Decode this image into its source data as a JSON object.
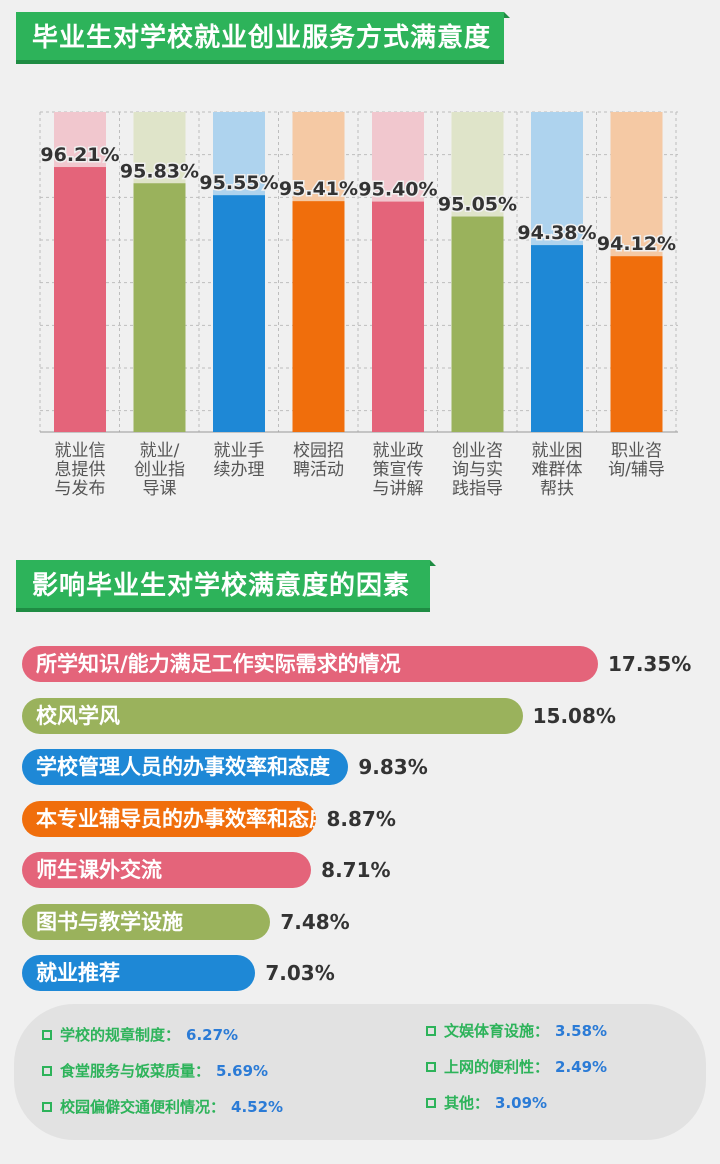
{
  "section1": {
    "title": "毕业生对学校就业创业服务方式满意度"
  },
  "section2": {
    "title": "影响毕业生对学校满意度的因素"
  },
  "colors": {
    "red": "#e4647a",
    "olive": "#9ab25c",
    "blue": "#1e88d6",
    "orange": "#f06e0c",
    "red_light": "#f1c7ce",
    "olive_light": "#dfe4c9",
    "blue_light": "#aed3ee",
    "orange_light": "#f5c9a4",
    "green": "#2db35a"
  },
  "chart_data": [
    {
      "type": "bar",
      "title": "毕业生对学校就业创业服务方式满意度",
      "categories": [
        "就业信息提供与发布",
        "就业/创业指导课",
        "就业手续办理",
        "校园招聘活动",
        "就业政策宣传与讲解",
        "创业咨询与实践指导",
        "就业困难群体帮扶",
        "职业咨询/辅导"
      ],
      "category_lines": [
        [
          "就业信",
          "息提供",
          "与发布"
        ],
        [
          "就业/",
          "创业指",
          "导课"
        ],
        [
          "就业手",
          "续办理"
        ],
        [
          "校园招",
          "聘活动"
        ],
        [
          "就业政",
          "策宣传",
          "与讲解"
        ],
        [
          "创业咨",
          "询与实",
          "践指导"
        ],
        [
          "就业困",
          "难群体",
          "帮扶"
        ],
        [
          "职业咨",
          "询/辅导"
        ]
      ],
      "values": [
        96.21,
        95.83,
        95.55,
        95.41,
        95.4,
        95.05,
        94.38,
        94.12
      ],
      "value_labels": [
        "96.21%",
        "95.83%",
        "95.55%",
        "95.41%",
        "95.40%",
        "95.05%",
        "94.38%",
        "94.12%"
      ],
      "bar_colors": [
        "red",
        "olive",
        "blue",
        "orange",
        "red",
        "olive",
        "blue",
        "orange"
      ],
      "ylim": [
        90,
        97.5
      ],
      "grid": true
    },
    {
      "type": "bar",
      "orientation": "horizontal",
      "title": "影响毕业生对学校满意度的因素",
      "categories": [
        "所学知识/能力满足工作实际需求的情况",
        "校风学风",
        "学校管理人员的办事效率和态度",
        "本专业辅导员的办事效率和态度",
        "师生课外交流",
        "图书与教学设施",
        "就业推荐"
      ],
      "values": [
        17.35,
        15.08,
        9.83,
        8.87,
        8.71,
        7.48,
        7.03
      ],
      "value_labels": [
        "17.35%",
        "15.08%",
        "9.83%",
        "8.87%",
        "8.71%",
        "7.48%",
        "7.03%"
      ],
      "bar_colors": [
        "red",
        "olive",
        "blue",
        "orange",
        "red",
        "olive",
        "blue"
      ],
      "xlim": [
        0,
        17.35
      ]
    }
  ],
  "others": [
    {
      "label": "学校的规章制度：",
      "value": "6.27%"
    },
    {
      "label": "食堂服务与饭菜质量：",
      "value": "5.69%"
    },
    {
      "label": "校园偏僻交通便利情况：",
      "value": "4.52%"
    },
    {
      "label": "文娱体育设施：",
      "value": "3.58%"
    },
    {
      "label": "上网的便利性：",
      "value": "2.49%"
    },
    {
      "label": "其他：",
      "value": "3.09%"
    }
  ]
}
